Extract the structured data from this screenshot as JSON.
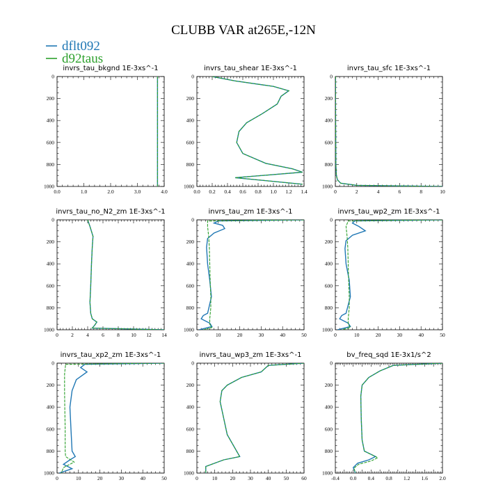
{
  "title": "CLUBB VAR at265E,-12N",
  "colors": {
    "dflt092": "#1f77b4",
    "d92taus": "#2ca02c"
  },
  "legend": [
    {
      "label": "dflt092",
      "color": "#1f77b4"
    },
    {
      "label": "d92taus",
      "color": "#2ca02c"
    }
  ],
  "chart_data": [
    {
      "type": "line",
      "title": "invrs_tau_bkgnd",
      "units": "1E-3xs^-1",
      "xlim": [
        0,
        4
      ],
      "ylim": [
        1000,
        0
      ],
      "xticks": [
        0,
        1,
        2,
        3,
        4
      ],
      "xtick_labels": [
        "0.0",
        "1.0",
        "2.0",
        "3.0",
        "4.0"
      ],
      "yticks": [
        0,
        200,
        400,
        600,
        800,
        1000
      ],
      "series": [
        {
          "name": "dflt092",
          "x": [
            3.75,
            3.75,
            3.75,
            3.75,
            3.75,
            3.75
          ],
          "y": [
            0,
            200,
            400,
            600,
            800,
            1000
          ]
        },
        {
          "name": "d92taus",
          "x": [
            3.75,
            3.75,
            3.75,
            3.75,
            3.75,
            3.75
          ],
          "y": [
            0,
            200,
            400,
            600,
            800,
            1000
          ]
        }
      ]
    },
    {
      "type": "line",
      "title": "invrs_tau_shear",
      "units": "1E-3xs^-1",
      "xlim": [
        0,
        1.4
      ],
      "ylim": [
        1000,
        0
      ],
      "xticks": [
        0,
        0.2,
        0.4,
        0.6,
        0.8,
        1.0,
        1.2,
        1.4
      ],
      "xtick_labels": [
        "0.0",
        "0.2",
        "0.4",
        "0.6",
        "0.8",
        "1.0",
        "1.2",
        "1.4"
      ],
      "yticks": [
        0,
        200,
        400,
        600,
        800,
        1000
      ],
      "series": [
        {
          "name": "dflt092",
          "x": [
            0.2,
            0.5,
            1.0,
            1.2,
            1.1,
            1.05,
            0.85,
            0.65,
            0.55,
            0.52,
            0.6,
            0.9,
            1.25,
            1.38,
            0.5,
            1.38
          ],
          "y": [
            0,
            40,
            90,
            130,
            180,
            250,
            340,
            420,
            500,
            600,
            700,
            790,
            840,
            870,
            920,
            980
          ]
        },
        {
          "name": "d92taus",
          "x": [
            0.2,
            0.5,
            1.0,
            1.2,
            1.1,
            1.05,
            0.85,
            0.65,
            0.55,
            0.52,
            0.6,
            0.9,
            1.25,
            1.38,
            0.5,
            1.38
          ],
          "y": [
            0,
            40,
            90,
            130,
            180,
            250,
            340,
            420,
            500,
            600,
            700,
            790,
            840,
            870,
            920,
            980
          ]
        }
      ]
    },
    {
      "type": "line",
      "title": "invrs_tau_sfc",
      "units": "1E-3xs^-1",
      "xlim": [
        0,
        10
      ],
      "ylim": [
        1000,
        0
      ],
      "xticks": [
        0,
        2,
        4,
        6,
        8,
        10
      ],
      "xtick_labels": [
        "0",
        "2",
        "4",
        "6",
        "8",
        "10"
      ],
      "yticks": [
        0,
        200,
        400,
        600,
        800,
        1000
      ],
      "series": [
        {
          "name": "dflt092",
          "x": [
            0.02,
            0.02,
            0.03,
            0.05,
            0.1,
            0.2,
            0.5,
            2.0,
            10.0
          ],
          "y": [
            0,
            200,
            500,
            800,
            900,
            940,
            970,
            990,
            1000
          ]
        },
        {
          "name": "d92taus",
          "x": [
            0.02,
            0.02,
            0.03,
            0.05,
            0.1,
            0.2,
            0.5,
            2.0,
            10.0
          ],
          "y": [
            0,
            200,
            500,
            800,
            900,
            940,
            970,
            990,
            1000
          ]
        }
      ]
    },
    {
      "type": "line",
      "title": "invrs_tau_no_N2_zm",
      "units": "1E-3xs^-1",
      "xlim": [
        0,
        14
      ],
      "ylim": [
        1000,
        0
      ],
      "xticks": [
        0,
        2,
        4,
        6,
        8,
        10,
        12,
        14
      ],
      "xtick_labels": [
        "0",
        "2",
        "4",
        "6",
        "8",
        "10",
        "12",
        "14"
      ],
      "yticks": [
        0,
        200,
        400,
        600,
        800,
        1000
      ],
      "series": [
        {
          "name": "dflt092",
          "x": [
            4.0,
            4.3,
            4.7,
            4.6,
            4.5,
            4.4,
            4.3,
            4.4,
            4.6,
            5.2,
            4.9,
            4.6,
            14.0
          ],
          "y": [
            0,
            60,
            150,
            250,
            400,
            600,
            750,
            850,
            900,
            930,
            960,
            985,
            1000
          ]
        },
        {
          "name": "d92taus",
          "x": [
            4.0,
            4.3,
            4.7,
            4.6,
            4.5,
            4.4,
            4.3,
            4.4,
            4.6,
            5.2,
            4.9,
            4.6,
            14.0
          ],
          "y": [
            0,
            60,
            150,
            250,
            400,
            600,
            750,
            850,
            900,
            930,
            960,
            985,
            1000
          ]
        }
      ]
    },
    {
      "type": "line",
      "title": "invrs_tau_zm",
      "units": "1E-3xs^-1",
      "xlim": [
        0,
        50
      ],
      "ylim": [
        1000,
        0
      ],
      "xticks": [
        0,
        10,
        20,
        30,
        40,
        50
      ],
      "xtick_labels": [
        "0",
        "10",
        "20",
        "30",
        "40",
        "50"
      ],
      "yticks": [
        0,
        200,
        400,
        600,
        800,
        1000
      ],
      "series": [
        {
          "name": "dflt092",
          "x": [
            50.0,
            10.0,
            8.0,
            12.0,
            13.0,
            8.0,
            5.0,
            4.5,
            5.0,
            6.0,
            6.8,
            5.0,
            3.0,
            2.0,
            6.0,
            7.0,
            1.0
          ],
          "y": [
            0,
            10,
            30,
            50,
            80,
            120,
            170,
            250,
            400,
            550,
            700,
            850,
            870,
            900,
            940,
            970,
            1000
          ]
        },
        {
          "name": "d92taus",
          "x": [
            50.0,
            5.0,
            5.0,
            5.5,
            5.8,
            6.0,
            6.2,
            6.5,
            6.5,
            6.0,
            6.0,
            7.0,
            3.0
          ],
          "y": [
            0,
            10,
            60,
            150,
            250,
            400,
            550,
            700,
            800,
            900,
            950,
            980,
            1000
          ]
        }
      ]
    },
    {
      "type": "line",
      "title": "invrs_tau_wp2_zm",
      "units": "1E-3xs^-1",
      "xlim": [
        0,
        50
      ],
      "ylim": [
        1000,
        0
      ],
      "xticks": [
        0,
        10,
        20,
        30,
        40,
        50
      ],
      "xtick_labels": [
        "0",
        "10",
        "20",
        "30",
        "40",
        "50"
      ],
      "yticks": [
        0,
        200,
        400,
        600,
        800,
        1000
      ],
      "series": [
        {
          "name": "dflt092",
          "x": [
            50.0,
            9.0,
            8.0,
            11.0,
            14.0,
            8.0,
            5.0,
            4.5,
            5.0,
            6.5,
            7.0,
            5.0,
            3.0,
            2.0,
            6.0,
            7.0,
            1.0
          ],
          "y": [
            0,
            10,
            30,
            60,
            100,
            140,
            190,
            260,
            400,
            550,
            700,
            850,
            870,
            900,
            940,
            970,
            1000
          ]
        },
        {
          "name": "d92taus",
          "x": [
            50.0,
            6.0,
            5.0,
            5.5,
            5.8,
            6.0,
            6.2,
            6.5,
            6.5,
            6.0,
            6.0,
            7.0,
            3.0
          ],
          "y": [
            0,
            10,
            60,
            150,
            250,
            400,
            550,
            700,
            800,
            900,
            950,
            980,
            1000
          ]
        }
      ]
    },
    {
      "type": "line",
      "title": "invrs_tau_xp2_zm",
      "units": "1E-3xs^-1",
      "xlim": [
        0,
        50
      ],
      "ylim": [
        1000,
        0
      ],
      "xticks": [
        0,
        10,
        20,
        30,
        40,
        50
      ],
      "xtick_labels": [
        "0",
        "10",
        "20",
        "30",
        "40",
        "50"
      ],
      "yticks": [
        0,
        200,
        400,
        600,
        800,
        1000
      ],
      "series": [
        {
          "name": "dflt092",
          "x": [
            50.0,
            13.0,
            11.0,
            14.0,
            9.0,
            7.0,
            6.0,
            6.5,
            7.0,
            8.5,
            6.0,
            3.0,
            7.0,
            1.0
          ],
          "y": [
            0,
            10,
            40,
            80,
            150,
            250,
            400,
            600,
            800,
            850,
            880,
            920,
            960,
            1000
          ]
        },
        {
          "name": "d92taus",
          "x": [
            50.0,
            4.0,
            3.5,
            3.5,
            3.6,
            3.8,
            3.8,
            4.0,
            8.0,
            3.0,
            2.0
          ],
          "y": [
            0,
            10,
            100,
            250,
            400,
            600,
            800,
            850,
            900,
            950,
            1000
          ]
        }
      ]
    },
    {
      "type": "line",
      "title": "invrs_tau_wp3_zm",
      "units": "1E-3xs^-1",
      "xlim": [
        0,
        60
      ],
      "ylim": [
        1000,
        0
      ],
      "xticks": [
        0,
        10,
        20,
        30,
        40,
        50,
        60
      ],
      "xtick_labels": [
        "0",
        "10",
        "20",
        "30",
        "40",
        "50",
        "60"
      ],
      "yticks": [
        0,
        200,
        400,
        600,
        800,
        1000
      ],
      "series": [
        {
          "name": "dflt092",
          "x": [
            60.0,
            40.0,
            36.0,
            25.0,
            17.0,
            14.0,
            13.0,
            15.0,
            17.0,
            24.0,
            15.0,
            5.0,
            5.0
          ],
          "y": [
            0,
            20,
            80,
            130,
            200,
            250,
            350,
            500,
            650,
            850,
            880,
            940,
            1000
          ]
        },
        {
          "name": "d92taus",
          "x": [
            60.0,
            40.0,
            36.0,
            25.0,
            17.0,
            14.0,
            13.0,
            15.0,
            17.0,
            24.0,
            15.0,
            5.0,
            5.0
          ],
          "y": [
            0,
            20,
            80,
            130,
            200,
            250,
            350,
            500,
            650,
            850,
            880,
            940,
            1000
          ]
        }
      ]
    },
    {
      "type": "line",
      "title": "bv_freq_sqd",
      "units": "1E-3x1/s^2",
      "xlim": [
        -0.4,
        2.0
      ],
      "ylim": [
        1000,
        0
      ],
      "xticks": [
        -0.4,
        -0.2,
        0.0,
        0.2,
        0.4,
        0.6,
        0.8,
        1.0,
        1.2,
        1.4,
        1.6,
        1.8,
        2.0
      ],
      "xtick_labels": [
        "-0.4",
        "",
        "0.0",
        "",
        "0.4",
        "",
        "0.8",
        "",
        "1.2",
        "",
        "1.6",
        "",
        "2.0"
      ],
      "yticks": [
        0,
        200,
        400,
        600,
        800,
        1000
      ],
      "series": [
        {
          "name": "dflt092",
          "x": [
            2.0,
            0.9,
            0.6,
            0.35,
            0.2,
            0.17,
            0.18,
            0.2,
            0.25,
            0.5,
            0.35,
            0.1,
            0.0,
            0.05
          ],
          "y": [
            0,
            20,
            70,
            130,
            200,
            300,
            500,
            700,
            800,
            850,
            880,
            910,
            950,
            1000
          ]
        },
        {
          "name": "d92taus",
          "x": [
            2.0,
            0.9,
            0.6,
            0.35,
            0.2,
            0.17,
            0.18,
            0.2,
            0.25,
            0.55,
            0.4,
            0.12,
            0.02,
            0.05
          ],
          "y": [
            0,
            20,
            70,
            130,
            200,
            300,
            500,
            700,
            800,
            860,
            890,
            920,
            955,
            1000
          ]
        }
      ]
    }
  ]
}
